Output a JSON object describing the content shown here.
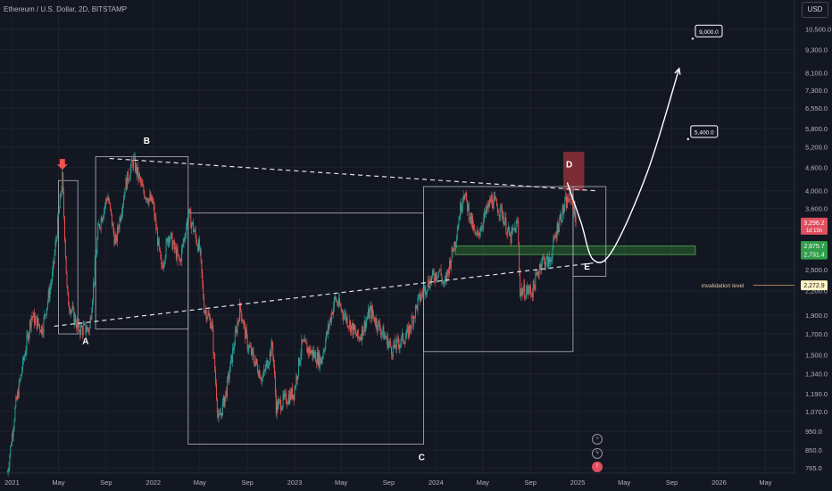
{
  "header": {
    "title": "Ethereum / U.S. Dollar, 2D, BITSTAMP",
    "currency_label": "USD"
  },
  "toolbar": {
    "icons": [
      "plus-icon",
      "lightning-icon",
      "alert-icon"
    ]
  },
  "colors": {
    "background": "#131722",
    "up": "#26a69a",
    "down": "#ef5350",
    "grid": "#1e222d",
    "zone_red": "#b2363f",
    "zone_green": "#2e7d32"
  },
  "chart_data": {
    "type": "candlestick",
    "title": "Ethereum / U.S. Dollar, 2D, BITSTAMP",
    "scale": "log",
    "ylim": [
      740,
      12500
    ],
    "x_range": [
      "2020-12-01",
      "2026-07-15"
    ],
    "x_ticks": [
      {
        "label": "2021",
        "date": "2021-01-01"
      },
      {
        "label": "May",
        "date": "2021-05-01"
      },
      {
        "label": "Sep",
        "date": "2021-09-01"
      },
      {
        "label": "2022",
        "date": "2022-01-01"
      },
      {
        "label": "May",
        "date": "2022-05-01"
      },
      {
        "label": "Sep",
        "date": "2022-09-01"
      },
      {
        "label": "2023",
        "date": "2023-01-01"
      },
      {
        "label": "May",
        "date": "2023-05-01"
      },
      {
        "label": "Sep",
        "date": "2023-09-01"
      },
      {
        "label": "2024",
        "date": "2024-01-01"
      },
      {
        "label": "May",
        "date": "2024-05-01"
      },
      {
        "label": "Sep",
        "date": "2024-09-01"
      },
      {
        "label": "2025",
        "date": "2025-01-01"
      },
      {
        "label": "May",
        "date": "2025-05-01"
      },
      {
        "label": "Sep",
        "date": "2025-09-01"
      },
      {
        "label": "2026",
        "date": "2026-01-01"
      },
      {
        "label": "May",
        "date": "2026-05-01"
      }
    ],
    "y_ticks": [
      {
        "label": "10,500.0",
        "value": 10500
      },
      {
        "label": "9,300.0",
        "value": 9300
      },
      {
        "label": "8,100.0",
        "value": 8100
      },
      {
        "label": "7,300.0",
        "value": 7300
      },
      {
        "label": "6,550.0",
        "value": 6550
      },
      {
        "label": "5,800.0",
        "value": 5800
      },
      {
        "label": "5,200.0",
        "value": 5200
      },
      {
        "label": "4,600.0",
        "value": 4600
      },
      {
        "label": "4,000.0",
        "value": 4000
      },
      {
        "label": "3,600.0",
        "value": 3600
      },
      {
        "label": "3,200.0",
        "value": 3200
      },
      {
        "label": "2,500.0",
        "value": 2500
      },
      {
        "label": "2,200.0",
        "value": 2200
      },
      {
        "label": "1,900.0",
        "value": 1900
      },
      {
        "label": "1,700.0",
        "value": 1700
      },
      {
        "label": "1,500.0",
        "value": 1500
      },
      {
        "label": "1,340.0",
        "value": 1340
      },
      {
        "label": "1,190.0",
        "value": 1190
      },
      {
        "label": "1,070.0",
        "value": 1070
      },
      {
        "label": "950.0",
        "value": 950
      },
      {
        "label": "850.0",
        "value": 850
      },
      {
        "label": "765.0",
        "value": 765
      }
    ],
    "price_path": [
      [
        "2020-12-20",
        740
      ],
      [
        "2021-01-10",
        1100
      ],
      [
        "2021-02-20",
        1900
      ],
      [
        "2021-03-20",
        1750
      ],
      [
        "2021-04-15",
        2400
      ],
      [
        "2021-05-11",
        4300
      ],
      [
        "2021-05-24",
        2100
      ],
      [
        "2021-06-22",
        1750
      ],
      [
        "2021-07-20",
        1750
      ],
      [
        "2021-08-12",
        3200
      ],
      [
        "2021-09-05",
        3900
      ],
      [
        "2021-09-25",
        2900
      ],
      [
        "2021-10-20",
        4100
      ],
      [
        "2021-11-10",
        4800
      ],
      [
        "2021-12-05",
        4000
      ],
      [
        "2021-12-31",
        3700
      ],
      [
        "2022-01-22",
        2500
      ],
      [
        "2022-02-10",
        3100
      ],
      [
        "2022-03-10",
        2600
      ],
      [
        "2022-04-02",
        3500
      ],
      [
        "2022-05-01",
        2800
      ],
      [
        "2022-05-12",
        2000
      ],
      [
        "2022-06-01",
        1800
      ],
      [
        "2022-06-18",
        1000
      ],
      [
        "2022-07-08",
        1200
      ],
      [
        "2022-08-13",
        2000
      ],
      [
        "2022-09-01",
        1600
      ],
      [
        "2022-10-10",
        1300
      ],
      [
        "2022-11-05",
        1600
      ],
      [
        "2022-11-14",
        1100
      ],
      [
        "2022-12-30",
        1200
      ],
      [
        "2023-01-20",
        1600
      ],
      [
        "2023-03-10",
        1450
      ],
      [
        "2023-04-15",
        2100
      ],
      [
        "2023-06-15",
        1650
      ],
      [
        "2023-07-15",
        1950
      ],
      [
        "2023-09-10",
        1550
      ],
      [
        "2023-10-20",
        1700
      ],
      [
        "2023-11-15",
        2050
      ],
      [
        "2023-12-10",
        2300
      ],
      [
        "2024-01-10",
        2500
      ],
      [
        "2024-01-22",
        2250
      ],
      [
        "2024-02-20",
        3000
      ],
      [
        "2024-03-12",
        4000
      ],
      [
        "2024-04-13",
        3000
      ],
      [
        "2024-05-23",
        3800
      ],
      [
        "2024-06-20",
        3500
      ],
      [
        "2024-07-10",
        3000
      ],
      [
        "2024-07-30",
        3300
      ],
      [
        "2024-08-05",
        2200
      ],
      [
        "2024-09-06",
        2200
      ],
      [
        "2024-09-30",
        2650
      ],
      [
        "2024-10-20",
        2600
      ],
      [
        "2024-11-12",
        3300
      ],
      [
        "2024-12-01",
        3700
      ],
      [
        "2024-12-15",
        3900
      ],
      [
        "2024-12-28",
        3300
      ]
    ],
    "annotations": {
      "points": [
        {
          "label": "A",
          "date": "2021-07-10",
          "value": 1600
        },
        {
          "label": "B",
          "date": "2021-12-15",
          "value": 5300
        },
        {
          "label": "C",
          "date": "2023-11-25",
          "value": 800
        },
        {
          "label": "D",
          "date": "2024-12-10",
          "value": 4600
        },
        {
          "label": "E",
          "date": "2025-01-25",
          "value": 2500
        }
      ],
      "price_labels": [
        {
          "label": "9,000.0",
          "date": "2025-11-01",
          "value": 10300
        },
        {
          "label": "5,400.0",
          "date": "2025-10-20",
          "value": 5650
        },
        {
          "label": "invalidation level",
          "date": "2025-10-20",
          "value": 2272.9
        }
      ],
      "axis_badges": [
        {
          "label": "3,296.2",
          "sub": "1d 15h",
          "value": 3296.2,
          "color": "#e04f5f"
        },
        {
          "label": "2,875.7",
          "value": 2875.7,
          "color": "#2e9e48"
        },
        {
          "label": "2,731.4",
          "value": 2731.4,
          "color": "#2e9e48"
        },
        {
          "label": "2,272.9",
          "value": 2272.9,
          "color": "#fff3c4"
        }
      ],
      "upper_trendline": [
        [
          "2021-09-10",
          4850
        ],
        [
          "2025-02-15",
          4000
        ]
      ],
      "lower_trendline": [
        [
          "2021-04-20",
          1780
        ],
        [
          "2025-03-15",
          2620
        ]
      ],
      "projection": [
        [
          "2024-12-05",
          4200
        ],
        [
          "2025-01-10",
          3300
        ],
        [
          "2025-02-10",
          2650
        ],
        [
          "2025-04-01",
          2800
        ],
        [
          "2025-07-01",
          4500
        ],
        [
          "2025-09-20",
          8300
        ]
      ],
      "invalidation_level": 2272.9,
      "boxes": [
        {
          "d1": "2021-05-01",
          "d2": "2021-06-20",
          "hi": 4250,
          "lo": 1700
        },
        {
          "d1": "2021-08-05",
          "d2": "2022-04-01",
          "hi": 4900,
          "lo": 1750
        },
        {
          "d1": "2022-04-01",
          "d2": "2023-11-30",
          "hi": 3500,
          "lo": 880
        },
        {
          "d1": "2023-11-30",
          "d2": "2024-12-20",
          "hi": 4100,
          "lo": 1530
        },
        {
          "d1": "2024-12-20",
          "d2": "2025-03-15",
          "hi": 4100,
          "lo": 2400
        }
      ],
      "green_zone": {
        "d1": "2024-02-20",
        "d2": "2025-11-01",
        "hi": 2875.7,
        "lo": 2731.4
      },
      "red_zone": {
        "d1": "2024-11-25",
        "d2": "2025-01-18",
        "hi": 5050,
        "lo": 4000
      }
    }
  }
}
